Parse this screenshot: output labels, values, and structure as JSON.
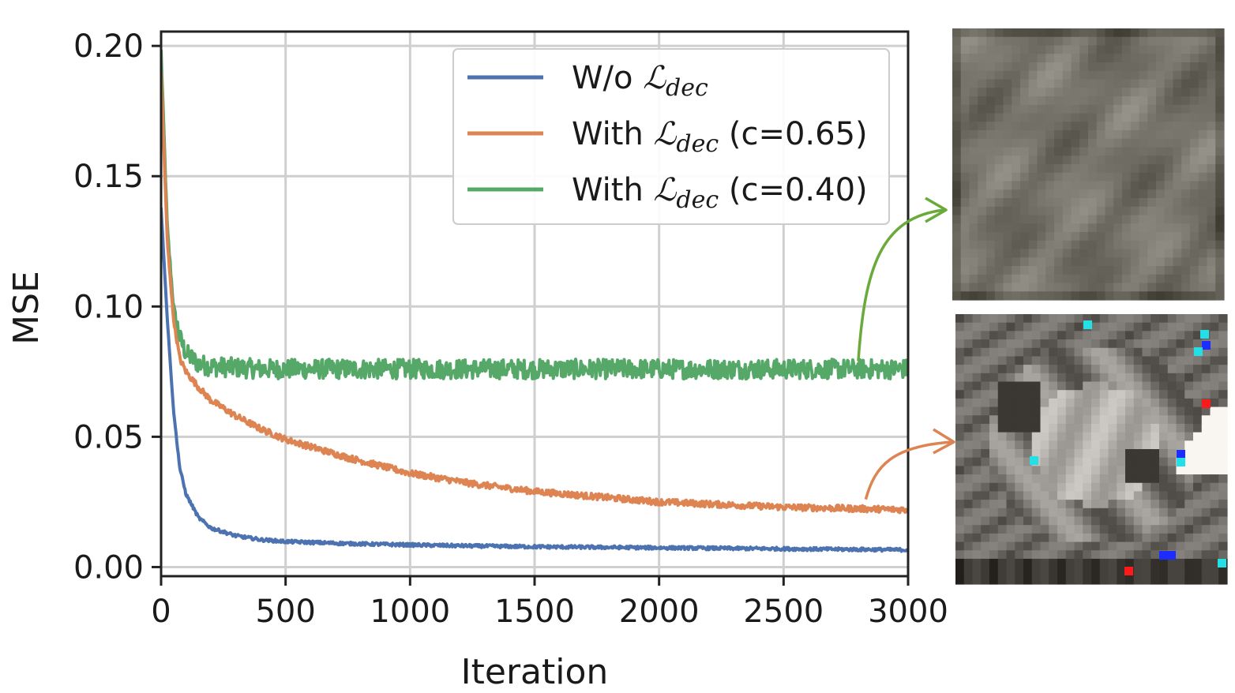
{
  "chart_data": {
    "type": "line",
    "title": "",
    "xlabel": "Iteration",
    "ylabel": "MSE",
    "xlim": [
      0,
      3000
    ],
    "ylim": [
      -0.0035,
      0.2055
    ],
    "xticks": [
      0,
      500,
      1000,
      1500,
      2000,
      2500,
      3000
    ],
    "xtick_labels": [
      "0",
      "500",
      "1000",
      "1500",
      "2000",
      "2500",
      "3000"
    ],
    "yticks": [
      0.0,
      0.05,
      0.1,
      0.15,
      0.2
    ],
    "ytick_labels": [
      "0.00",
      "0.05",
      "0.10",
      "0.15",
      "0.20"
    ],
    "grid": true,
    "legend": {
      "position": "top-right"
    },
    "x": [
      0,
      25,
      50,
      75,
      100,
      150,
      200,
      300,
      400,
      500,
      750,
      1000,
      1250,
      1500,
      1750,
      2000,
      2250,
      2500,
      2750,
      3000
    ],
    "series": [
      {
        "name": "W/o",
        "name_prefix": "W/o",
        "name_symbol": "ℒ",
        "name_sub": "dec",
        "name_suffix": "",
        "color": "#4c72b0",
        "noise": 0.0006,
        "values": [
          0.138,
          0.095,
          0.06,
          0.038,
          0.028,
          0.019,
          0.015,
          0.012,
          0.0105,
          0.0098,
          0.009,
          0.0085,
          0.0081,
          0.0078,
          0.0076,
          0.0074,
          0.0072,
          0.007,
          0.0068,
          0.0066
        ]
      },
      {
        "name": "With (c=0.65)",
        "name_prefix": "With",
        "name_symbol": "ℒ",
        "name_sub": "dec",
        "name_suffix": "(c=0.65)",
        "color": "#dd8452",
        "noise": 0.0012,
        "values": [
          0.19,
          0.125,
          0.095,
          0.08,
          0.075,
          0.069,
          0.064,
          0.058,
          0.053,
          0.049,
          0.042,
          0.036,
          0.032,
          0.029,
          0.027,
          0.025,
          0.024,
          0.023,
          0.0225,
          0.022
        ]
      },
      {
        "name": "With (c=0.40)",
        "name_prefix": "With",
        "name_symbol": "ℒ",
        "name_sub": "dec",
        "name_suffix": "(c=0.40)",
        "color": "#55a868",
        "noise": 0.0038,
        "values": [
          0.198,
          0.13,
          0.1,
          0.088,
          0.082,
          0.078,
          0.077,
          0.0765,
          0.076,
          0.076,
          0.076,
          0.076,
          0.076,
          0.076,
          0.076,
          0.076,
          0.076,
          0.076,
          0.076,
          0.076
        ]
      }
    ],
    "annotations": [
      {
        "series": "With (c=0.40)",
        "at_x": 2800,
        "target": "top-image"
      },
      {
        "series": "With (c=0.65)",
        "at_x": 2830,
        "target": "bottom-image"
      }
    ]
  },
  "images": [
    {
      "name": "decoded-image-c040",
      "description_colors": [
        "#6f6e63",
        "#8a8a80",
        "#5c5b4e"
      ]
    },
    {
      "name": "decoded-image-c065",
      "description_colors": [
        "#3b3b37",
        "#b9b8b4",
        "#8d8b84"
      ]
    }
  ]
}
